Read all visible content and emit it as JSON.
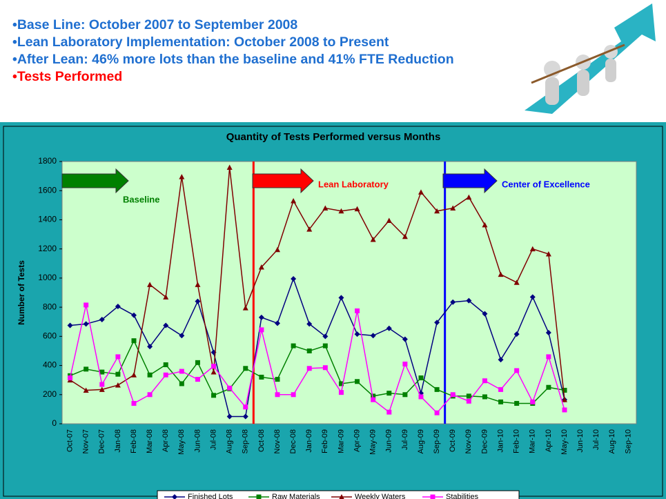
{
  "bullets": [
    "Base Line: October 2007 to September 2008",
    "Lean Laboratory Implementation: October 2008 to Present",
    "After Lean: 46% more lots than the baseline and 41% FTE Reduction",
    "Tests Performed"
  ],
  "chart_data": {
    "type": "line",
    "title": "Quantity of Tests Performed versus Months",
    "y_label": "Number of Tests",
    "categories": [
      "Oct-07",
      "Nov-07",
      "Dec-07",
      "Jan-08",
      "Feb-08",
      "Mar-08",
      "Apr-08",
      "May-08",
      "Jun-08",
      "Jul-08",
      "Aug-08",
      "Sep-08",
      "Oct-08",
      "Nov-08",
      "Dec-08",
      "Jan-09",
      "Feb-09",
      "Mar-09",
      "Apr-09",
      "May-09",
      "Jun-09",
      "Jul-09",
      "Aug-09",
      "Sep-09",
      "Oct-09",
      "Nov-09",
      "Dec-09",
      "Jan-10",
      "Feb-10",
      "Mar-10",
      "Apr-10",
      "May-10",
      "Jun-10",
      "Jul-10",
      "Aug-10",
      "Sep-10"
    ],
    "series": [
      {
        "name": "Finished Lots",
        "color": "#000080",
        "marker": "diamond",
        "values": [
          675,
          685,
          715,
          805,
          745,
          530,
          675,
          605,
          840,
          490,
          50,
          50,
          730,
          690,
          995,
          685,
          600,
          865,
          615,
          605,
          655,
          580,
          210,
          695,
          835,
          845,
          755,
          440,
          615,
          870,
          625,
          165,
          null,
          null,
          null,
          null
        ]
      },
      {
        "name": "Raw Materials",
        "color": "#008000",
        "marker": "square",
        "values": [
          330,
          375,
          355,
          340,
          570,
          335,
          405,
          275,
          420,
          195,
          240,
          380,
          320,
          305,
          535,
          500,
          535,
          275,
          290,
          190,
          210,
          200,
          315,
          235,
          190,
          190,
          185,
          150,
          140,
          140,
          250,
          230,
          null,
          null,
          null,
          null
        ]
      },
      {
        "name": "Weekly Waters",
        "color": "#800000",
        "marker": "triangle",
        "values": [
          300,
          230,
          235,
          265,
          335,
          955,
          870,
          1695,
          955,
          355,
          1760,
          795,
          1075,
          1195,
          1530,
          1335,
          1480,
          1460,
          1475,
          1265,
          1395,
          1285,
          1590,
          1460,
          1480,
          1555,
          1365,
          1025,
          970,
          1200,
          1165,
          165,
          null,
          null,
          null,
          null
        ]
      },
      {
        "name": "Stabilities",
        "color": "#ff00ff",
        "marker": "square",
        "values": [
          315,
          815,
          270,
          460,
          140,
          200,
          335,
          360,
          305,
          395,
          245,
          115,
          645,
          200,
          200,
          380,
          385,
          215,
          775,
          165,
          80,
          410,
          185,
          75,
          200,
          155,
          295,
          235,
          365,
          150,
          460,
          95,
          null,
          null,
          null,
          null
        ]
      }
    ],
    "annotations": [
      {
        "text": "Baseline",
        "color": "#008000"
      },
      {
        "text": "Lean Laboratory",
        "color": "#ff0000"
      },
      {
        "text": "Center of Excellence",
        "color": "#0000ff"
      }
    ],
    "ylim": [
      0,
      1800
    ],
    "yticks": [
      0,
      200,
      400,
      600,
      800,
      1000,
      1200,
      1400,
      1600,
      1800
    ],
    "legend": "bottom"
  }
}
